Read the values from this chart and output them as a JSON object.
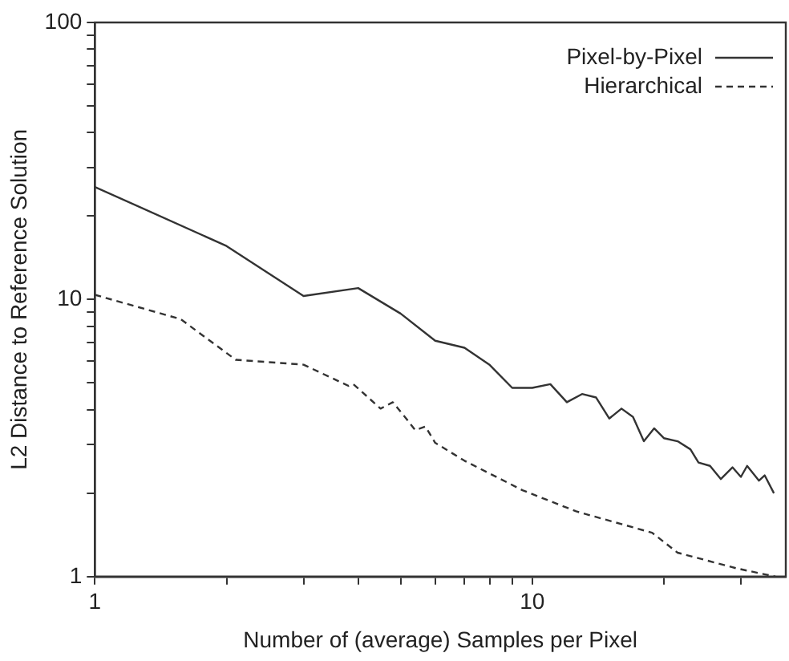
{
  "chart_data": {
    "type": "line",
    "xlabel": "Number of (average) Samples per Pixel",
    "ylabel": "L2 Distance to Reference Solution",
    "log": "xy",
    "grid": false,
    "legend": "top right",
    "marker": "none",
    "xlim": [
      1,
      38
    ],
    "ylim": [
      1,
      100
    ],
    "xticks": [
      1,
      {
        "value": 2,
        "label": null
      },
      {
        "value": 3,
        "label": null
      },
      {
        "value": 4,
        "label": null
      },
      {
        "value": 5,
        "label": null
      },
      {
        "value": 6,
        "label": null
      },
      {
        "value": 7,
        "label": null
      },
      {
        "value": 8,
        "label": null
      },
      {
        "value": 9,
        "label": null
      },
      10,
      {
        "value": 20,
        "label": null
      },
      {
        "value": 30,
        "label": null
      }
    ],
    "yticks": [
      1,
      {
        "value": 2,
        "label": null
      },
      {
        "value": 3,
        "label": null
      },
      {
        "value": 4,
        "label": null
      },
      {
        "value": 5,
        "label": null
      },
      {
        "value": 6,
        "label": null
      },
      {
        "value": 7,
        "label": null
      },
      {
        "value": 8,
        "label": null
      },
      {
        "value": 9,
        "label": null
      },
      10,
      {
        "value": 20,
        "label": null
      },
      {
        "value": 30,
        "label": null
      },
      {
        "value": 40,
        "label": null
      },
      {
        "value": 50,
        "label": null
      },
      {
        "value": 60,
        "label": null
      },
      {
        "value": 70,
        "label": null
      },
      {
        "value": 80,
        "label": null
      },
      {
        "value": 90,
        "label": null
      },
      100
    ],
    "series": [
      {
        "name": "Pixel-by-Pixel",
        "color": "#333333",
        "line_style": "solid",
        "x": [
          1,
          2,
          3,
          4,
          5,
          6,
          7,
          8,
          9,
          10,
          11,
          12,
          13,
          14,
          15,
          16,
          17,
          18,
          19,
          20,
          21.5,
          23,
          24,
          25.5,
          27,
          28.7,
          30,
          31,
          33,
          34,
          35.7
        ],
        "values": [
          25.5,
          15.6,
          10.3,
          11,
          8.9,
          7.1,
          6.7,
          5.8,
          4.8,
          4.8,
          4.95,
          4.26,
          4.56,
          4.43,
          3.72,
          4.04,
          3.77,
          3.08,
          3.43,
          3.16,
          3.08,
          2.88,
          2.58,
          2.51,
          2.25,
          2.48,
          2.29,
          2.51,
          2.22,
          2.32,
          2.0
        ]
      },
      {
        "name": "Hierarchical",
        "color": "#333333",
        "line_style": "dashed",
        "x": [
          1,
          1.57,
          2.1,
          3,
          3.8,
          3.9,
          4.5,
          4.8,
          5.15,
          5.4,
          5.7,
          6,
          7,
          9.5,
          12.6,
          18.8,
          21.5,
          29.4,
          36
        ],
        "values": [
          10.4,
          8.5,
          6.06,
          5.82,
          4.88,
          4.95,
          4.04,
          4.26,
          3.72,
          3.38,
          3.48,
          3.04,
          2.62,
          2.05,
          1.72,
          1.44,
          1.22,
          1.07,
          1.0
        ]
      }
    ]
  }
}
